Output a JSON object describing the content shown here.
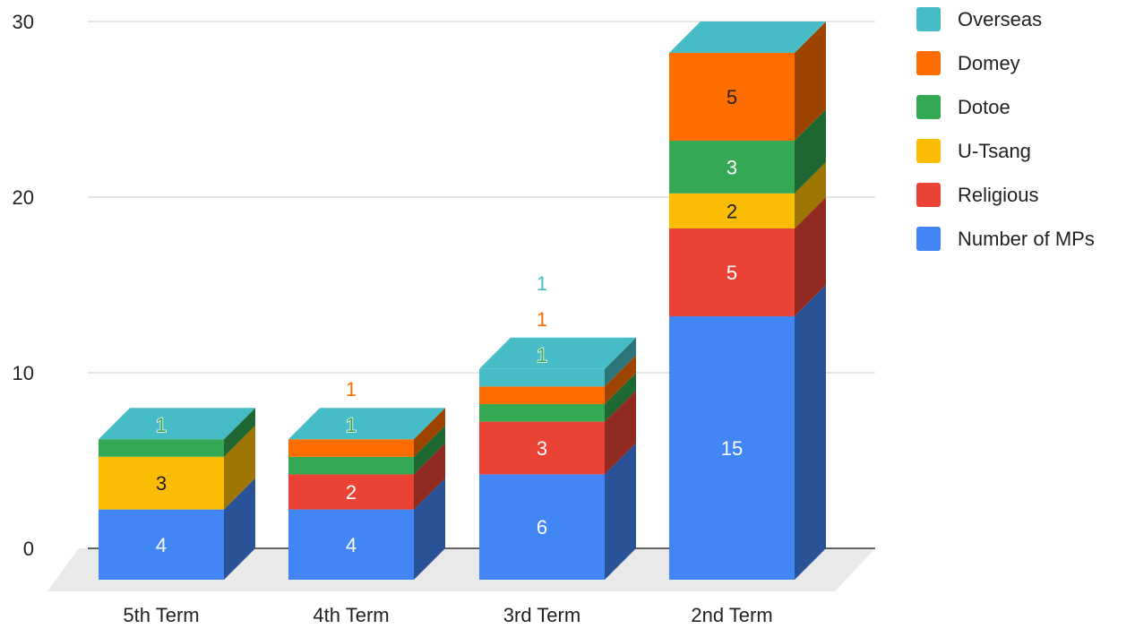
{
  "chart_data": {
    "type": "bar",
    "stacked": true,
    "style": "3d",
    "categories": [
      "5th Term",
      "4th Term",
      "3rd Term",
      "2nd Term"
    ],
    "ylim": [
      0,
      30
    ],
    "yticks": [
      0,
      10,
      20,
      30
    ],
    "grid": true,
    "legend_position": "right",
    "legend_order": [
      "Overseas",
      "Domey",
      "Dotoe",
      "U-Tsang",
      "Religious",
      "Number of MPs"
    ],
    "series": [
      {
        "name": "Number of MPs",
        "color": "#4285F4",
        "values": [
          4,
          4,
          6,
          15
        ]
      },
      {
        "name": "Religious",
        "color": "#EA4335",
        "values": [
          0,
          2,
          3,
          5
        ]
      },
      {
        "name": "U-Tsang",
        "color": "#FBBC04",
        "values": [
          3,
          0,
          0,
          2
        ]
      },
      {
        "name": "Dotoe",
        "color": "#34A853",
        "values": [
          1,
          1,
          1,
          3
        ]
      },
      {
        "name": "Domey",
        "color": "#FF6D01",
        "values": [
          0,
          1,
          1,
          5
        ]
      },
      {
        "name": "Overseas",
        "color": "#46BDC6",
        "values": [
          0,
          0,
          1,
          0
        ]
      }
    ]
  }
}
